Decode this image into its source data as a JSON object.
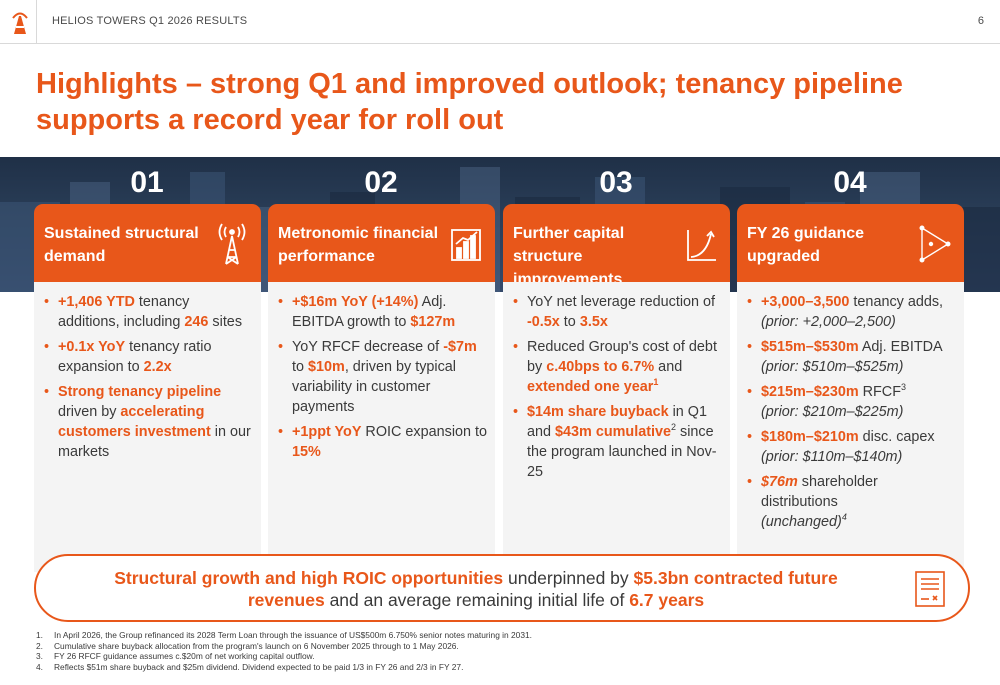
{
  "header": {
    "title": "HELIOS TOWERS Q1 2026 RESULTS",
    "page_number": "6"
  },
  "title": "Highlights – strong Q1 and improved outlook; tenancy pipeline supports a record year for roll out",
  "columns": [
    {
      "number": "01",
      "heading": "Sustained structural demand",
      "icon": "tower-signal-icon",
      "bullets": [
        {
          "b1": "+1,406 YTD",
          "t1": " tenancy additions, including ",
          "b2": "246",
          "t2": " sites"
        },
        {
          "b1": "+0.1x YoY",
          "t1": " tenancy ratio expansion to ",
          "b2": "2.2x",
          "t2": ""
        },
        {
          "b1": "Strong tenancy pipeline",
          "t1": " driven by ",
          "b2": "accelerating customers investment",
          "t2": " in our markets"
        }
      ]
    },
    {
      "number": "02",
      "heading": "Metronomic financial performance",
      "icon": "bar-chart-icon",
      "bullets": [
        {
          "b1": "+$16m YoY (+14%)",
          "t1": " Adj. EBITDA growth to ",
          "b2": "$127m",
          "t2": ""
        },
        {
          "t0": "YoY RFCF decrease of ",
          "b1": "-$7m",
          "t1": " to ",
          "b2": "$10m",
          "t2": ", driven by typical variability in customer payments"
        },
        {
          "b1": "+1ppt YoY",
          "t1": " ROIC expansion to ",
          "b2": "15%",
          "t2": ""
        }
      ]
    },
    {
      "number": "03",
      "heading": "Further capital structure improvements",
      "icon": "growth-curve-icon",
      "bullets": [
        {
          "t0": "YoY net leverage reduction of ",
          "b1": "-0.5x",
          "t1": " to ",
          "b2": "3.5x",
          "t2": ""
        },
        {
          "t0": "Reduced Group's cost of debt by ",
          "b1": "c.40bps to 6.7%",
          "t1": " and ",
          "b2": "extended one year",
          "sup": "1"
        },
        {
          "b1": "$14m share buyback",
          "t1": " in Q1 and ",
          "b2": "$43m cumulative",
          "sup": "2",
          "t2": " since the program launched in Nov-25"
        }
      ]
    },
    {
      "number": "04",
      "heading": "FY 26 guidance upgraded",
      "icon": "forward-arrow-icon",
      "bullets": [
        {
          "b1": "+3,000–3,500",
          "t1": " tenancy adds,",
          "prior": "(prior: +2,000–2,500)"
        },
        {
          "b1": "$515m–$530m",
          "t1": " Adj. EBITDA",
          "prior": "(prior: $510m–$525m)"
        },
        {
          "b1": "$215m–$230m",
          "t1": " RFCF",
          "sup": "3",
          "prior": "(prior: $210m–$225m)"
        },
        {
          "b1": "$180m–$210m",
          "t1": " disc. capex",
          "prior": "(prior: $110m–$140m)"
        },
        {
          "b1": "$76m",
          "t1": " shareholder distributions",
          "prior": "(unchanged)",
          "prior_sup": "4"
        }
      ]
    }
  ],
  "callout": {
    "p1": "Structural growth and high ROIC opportunities",
    "p2": " underpinned by ",
    "p3": "$5.3bn contracted future revenues",
    "p4": " and an average remaining initial life of ",
    "p5": "6.7 years",
    "icon": "contract-document-icon"
  },
  "footnotes": [
    {
      "n": "1.",
      "text": "In April 2026, the Group refinanced its 2028 Term Loan through the issuance of US$500m 6.750% senior notes maturing in 2031."
    },
    {
      "n": "2.",
      "text": "Cumulative share buyback allocation from the program's launch on 6 November 2025 through to 1 May 2026."
    },
    {
      "n": "3.",
      "text": "FY 26 RFCF guidance assumes c.$20m of net working capital outflow."
    },
    {
      "n": "4.",
      "text": "Reflects $51m share buyback and $25m dividend. Dividend expected to be paid 1/3 in FY 26 and 2/3 in FY 27."
    }
  ],
  "colors": {
    "accent": "#e8571a",
    "banner": "#2a3e58",
    "card_body": "#f4f4f4"
  }
}
